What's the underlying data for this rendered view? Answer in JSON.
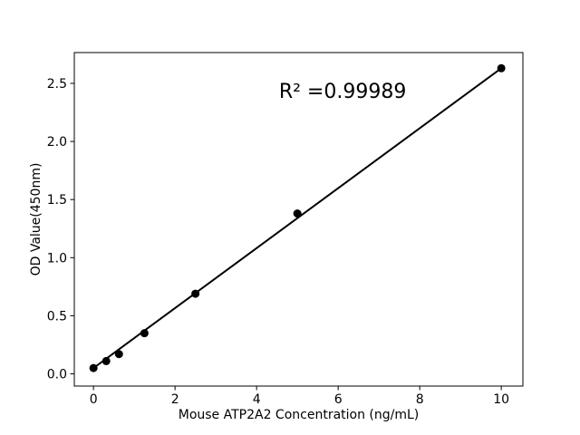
{
  "chart_data": {
    "type": "scatter",
    "title": "",
    "xlabel": "Mouse ATP2A2 Concentration (ng/mL)",
    "ylabel": "OD Value(450nm)",
    "x": [
      0,
      0.3125,
      0.625,
      1.25,
      2.5,
      5,
      10
    ],
    "y": [
      0.05,
      0.11,
      0.17,
      0.35,
      0.69,
      1.38,
      2.63
    ],
    "fit_line": {
      "x_start": 0,
      "y_start": 0.05,
      "x_end": 10,
      "y_end": 2.63
    },
    "r_squared": 0.99989,
    "annotation": {
      "text": "R² =0.99989",
      "x": 6.11,
      "y": 2.375
    },
    "xtick_labels": [
      "0",
      "2",
      "4",
      "6",
      "8",
      "10"
    ],
    "xtick_values": [
      0,
      2,
      4,
      6,
      8,
      10
    ],
    "ytick_labels": [
      "0.0",
      "0.5",
      "1.0",
      "1.5",
      "2.0",
      "2.5"
    ],
    "ytick_values": [
      0,
      0.5,
      1.0,
      1.5,
      2.0,
      2.5
    ],
    "xlim": [
      -0.47,
      10.53
    ],
    "ylim": [
      -0.105,
      2.765
    ],
    "grid": false,
    "legend": null,
    "line_color": "#000000",
    "marker_color": "#000000",
    "background": "#ffffff"
  }
}
